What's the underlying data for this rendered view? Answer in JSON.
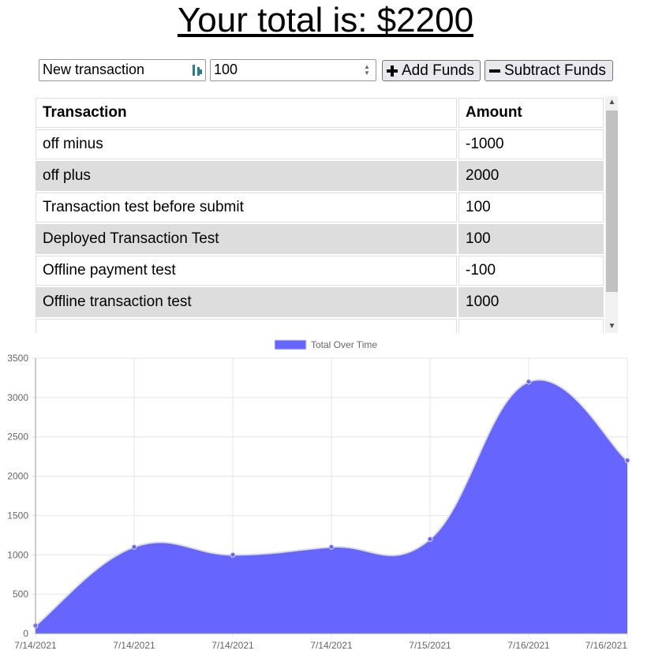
{
  "header": {
    "title": "Your total is: $2200"
  },
  "form": {
    "name_value": "New transaction",
    "amount_value": "100",
    "add_label": "Add Funds",
    "subtract_label": "Subtract Funds"
  },
  "table": {
    "headers": [
      "Transaction",
      "Amount"
    ],
    "rows": [
      {
        "name": "off minus",
        "amount": "-1000"
      },
      {
        "name": "off plus",
        "amount": "2000"
      },
      {
        "name": "Transaction test before submit",
        "amount": "100"
      },
      {
        "name": "Deployed Transaction Test",
        "amount": "100"
      },
      {
        "name": "Offline payment test",
        "amount": "-100"
      },
      {
        "name": "Offline transaction test",
        "amount": "1000"
      },
      {
        "name": "",
        "amount": ""
      }
    ]
  },
  "chart_data": {
    "type": "area",
    "legend": "Total Over Time",
    "legend_position": "top",
    "x": [
      "7/14/2021",
      "7/14/2021",
      "7/14/2021",
      "7/14/2021",
      "7/15/2021",
      "7/16/2021",
      "7/16/2021"
    ],
    "values": [
      100,
      1100,
      1000,
      1100,
      1200,
      3200,
      2200
    ],
    "ylim": [
      0,
      3500
    ],
    "yticks": [
      0,
      500,
      1000,
      1500,
      2000,
      2500,
      3000,
      3500
    ],
    "grid": true,
    "fill_color": "#6666ff",
    "line_color": "#ddd"
  }
}
